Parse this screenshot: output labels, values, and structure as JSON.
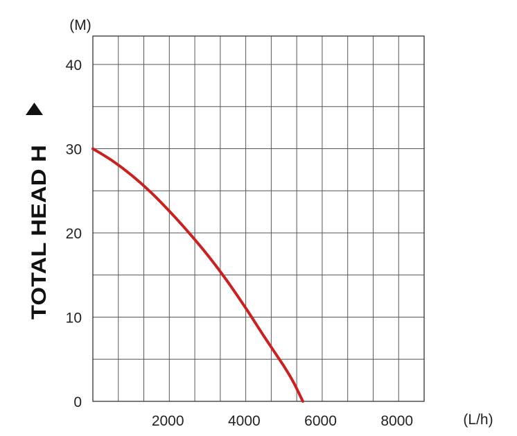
{
  "chart_data": {
    "type": "line",
    "ylabel": "TOTAL HEAD H",
    "y_unit": "(M)",
    "x_unit": "(L/h)",
    "xlim": [
      0,
      8000
    ],
    "ylim": [
      0,
      40
    ],
    "x_ticks": [
      2000,
      4000,
      6000,
      8000
    ],
    "y_ticks": [
      0,
      10,
      20,
      30,
      40
    ],
    "grid": true,
    "series": [
      {
        "color": "#cc1f1f",
        "x": [
          0,
          500,
          1000,
          1500,
          2000,
          2500,
          3000,
          3500,
          4000,
          4500,
          5000,
          5250,
          5500
        ],
        "y": [
          30,
          28.6,
          26.9,
          24.9,
          22.6,
          20.1,
          17.4,
          14.4,
          11.1,
          7.6,
          4.2,
          2.3,
          0
        ]
      }
    ]
  }
}
